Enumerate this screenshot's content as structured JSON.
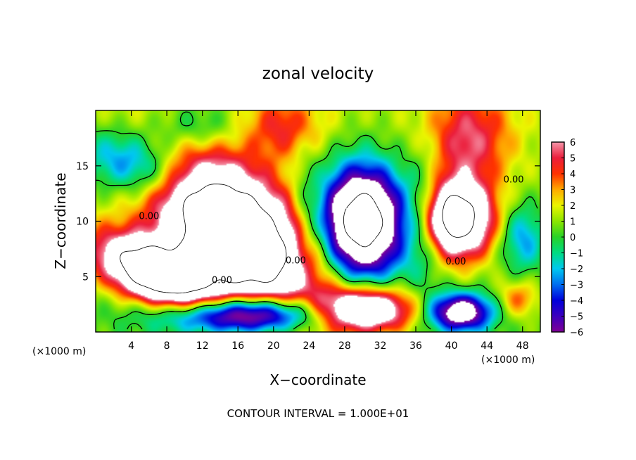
{
  "chart_data": {
    "type": "heatmap",
    "title": "zonal velocity",
    "xlabel": "X−coordinate",
    "ylabel": "Z−coordinate",
    "x_unit_left": "(×1000 m)",
    "x_unit_right": "(×1000 m)",
    "footer": "CONTOUR INTERVAL = 1.000E+01",
    "xlim": [
      0,
      50
    ],
    "ylim": [
      0,
      20
    ],
    "x_ticks": [
      4,
      8,
      12,
      16,
      20,
      24,
      28,
      32,
      36,
      40,
      44,
      48
    ],
    "y_ticks": [
      5,
      10,
      15
    ],
    "colorbar": {
      "min": -6,
      "max": 6,
      "ticks": [
        6,
        5,
        4,
        3,
        2,
        1,
        0,
        -1,
        -2,
        -3,
        -4,
        -5,
        -6
      ],
      "tick_labels": [
        "6",
        "5",
        "4",
        "3",
        "2",
        "1",
        "0",
        "−1",
        "−2",
        "−3",
        "−4",
        "−5",
        "−6"
      ],
      "saturated_color": "#ffffff"
    },
    "contour_labels": [
      {
        "text": "0.00",
        "x": 6.0,
        "y": 10.2
      },
      {
        "text": "0.00",
        "x": 14.2,
        "y": 4.4
      },
      {
        "text": "0.00",
        "x": 22.5,
        "y": 6.2
      },
      {
        "text": "0.00",
        "x": 40.5,
        "y": 6.1
      },
      {
        "text": "0.00",
        "x": 47.0,
        "y": 13.5
      }
    ],
    "field_features": [
      {
        "kind": "positive_max",
        "x": 15.5,
        "y": 9.0,
        "sx": 6.8,
        "sy": 3.6,
        "rotation_deg": -32,
        "amplitude": 15
      },
      {
        "kind": "positive_max",
        "x": 7.0,
        "y": 5.2,
        "sx": 4.8,
        "sy": 1.9,
        "rotation_deg": -18,
        "amplitude": 13
      },
      {
        "kind": "negative_min",
        "x": 30.0,
        "y": 10.0,
        "sx": 3.2,
        "sy": 3.4,
        "rotation_deg": 0,
        "amplitude": -14
      },
      {
        "kind": "positive_max",
        "x": 40.5,
        "y": 10.2,
        "sx": 2.8,
        "sy": 2.4,
        "rotation_deg": 0,
        "amplitude": 12
      },
      {
        "kind": "negative_min",
        "x": 5.0,
        "y": 15.0,
        "sx": 4.5,
        "sy": 2.0,
        "rotation_deg": -12,
        "amplitude": -5.8
      },
      {
        "kind": "negative_min",
        "x": 17.0,
        "y": 1.6,
        "sx": 6.5,
        "sy": 1.2,
        "rotation_deg": 0,
        "amplitude": -11
      },
      {
        "kind": "positive_max",
        "x": 30.0,
        "y": 2.0,
        "sx": 4.0,
        "sy": 1.4,
        "rotation_deg": 0,
        "amplitude": 10
      },
      {
        "kind": "negative_min",
        "x": 41.0,
        "y": 1.8,
        "sx": 2.5,
        "sy": 1.2,
        "rotation_deg": 0,
        "amplitude": -9
      },
      {
        "kind": "positive_max",
        "x": 21.0,
        "y": 18.5,
        "sx": 3.0,
        "sy": 2.0,
        "rotation_deg": 0,
        "amplitude": 3.2
      },
      {
        "kind": "positive_max",
        "x": 42.0,
        "y": 17.5,
        "sx": 3.2,
        "sy": 3.0,
        "rotation_deg": 0,
        "amplitude": 4.2
      },
      {
        "kind": "negative_min",
        "x": 11.0,
        "y": 18.5,
        "sx": 3.5,
        "sy": 1.6,
        "rotation_deg": 0,
        "amplitude": -2.8
      },
      {
        "kind": "negative_min",
        "x": 48.0,
        "y": 8.5,
        "sx": 1.8,
        "sy": 2.2,
        "rotation_deg": 0,
        "amplitude": -3.5
      },
      {
        "kind": "positive_max",
        "x": 47.5,
        "y": 3.0,
        "sx": 1.6,
        "sy": 1.2,
        "rotation_deg": 0,
        "amplitude": 3.0
      },
      {
        "kind": "negative_min",
        "x": 37.0,
        "y": 10.0,
        "sx": 1.6,
        "sy": 4.0,
        "rotation_deg": 0,
        "amplitude": -3.0
      },
      {
        "kind": "negative_min",
        "x": 23.5,
        "y": 10.0,
        "sx": 1.0,
        "sy": 5.0,
        "rotation_deg": 0,
        "amplitude": -1.2
      }
    ]
  }
}
